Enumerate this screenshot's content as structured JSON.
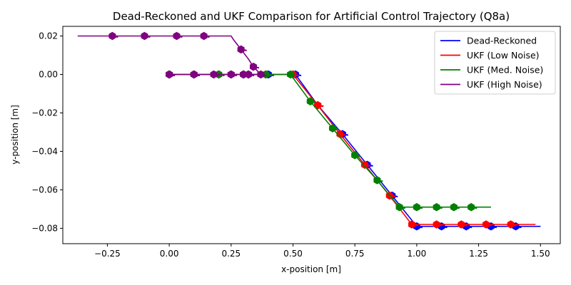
{
  "chart_data": {
    "type": "line",
    "title": "Dead-Reckoned and UKF Comparison for Artificial Control Trajectory (Q8a)",
    "xlabel": "x-position [m]",
    "ylabel": "y-position [m]",
    "xlim": [
      -0.43,
      1.58
    ],
    "ylim": [
      -0.088,
      0.025
    ],
    "xticks": [
      -0.25,
      0.0,
      0.25,
      0.5,
      0.75,
      1.0,
      1.25,
      1.5
    ],
    "xtick_labels": [
      "−0.25",
      "0.00",
      "0.25",
      "0.50",
      "0.75",
      "1.00",
      "1.25",
      "1.50"
    ],
    "yticks": [
      0.02,
      0.0,
      -0.02,
      -0.04,
      -0.06,
      -0.08
    ],
    "ytick_labels": [
      "0.02",
      "0.00",
      "−0.02",
      "−0.04",
      "−0.06",
      "−0.08"
    ],
    "grid": false,
    "legend_position": "top-right",
    "series": [
      {
        "name": "Dead-Reckoned",
        "color": "#0000ff",
        "x": [
          0.0,
          0.1,
          0.2,
          0.3,
          0.4,
          0.51,
          0.6,
          0.7,
          0.8,
          0.9,
          1.0,
          1.1,
          1.2,
          1.3,
          1.4,
          1.5
        ],
        "y": [
          0.0,
          0.0,
          0.0,
          0.0,
          0.0,
          0.0,
          -0.016,
          -0.031,
          -0.047,
          -0.063,
          -0.079,
          -0.079,
          -0.079,
          -0.079,
          -0.079,
          -0.079
        ],
        "markers": [
          0.0,
          0.1,
          0.2,
          0.3,
          0.4,
          0.51,
          0.6,
          0.7,
          0.8,
          0.9,
          1.0,
          1.1,
          1.2,
          1.3,
          1.4
        ]
      },
      {
        "name": "UKF (Low Noise)",
        "color": "#ff0000",
        "x": [
          0.0,
          0.1,
          0.2,
          0.3,
          0.39,
          0.5,
          0.6,
          0.69,
          0.79,
          0.89,
          0.98,
          1.08,
          1.18,
          1.28,
          1.38,
          1.48
        ],
        "y": [
          0.0,
          0.0,
          0.0,
          0.0,
          0.0,
          0.0,
          -0.016,
          -0.031,
          -0.047,
          -0.063,
          -0.078,
          -0.078,
          -0.078,
          -0.078,
          -0.078,
          -0.078
        ],
        "markers": [
          0.0,
          0.1,
          0.2,
          0.3,
          0.39,
          0.5,
          0.6,
          0.69,
          0.79,
          0.89,
          0.98,
          1.08,
          1.18,
          1.28,
          1.38
        ]
      },
      {
        "name": "UKF (Med. Noise)",
        "color": "#008000",
        "x": [
          0.0,
          0.1,
          0.2,
          0.3,
          0.39,
          0.49,
          0.57,
          0.66,
          0.75,
          0.84,
          0.93,
          1.0,
          1.08,
          1.15,
          1.22,
          1.3
        ],
        "y": [
          0.0,
          0.0,
          0.0,
          0.0,
          0.0,
          0.0,
          -0.014,
          -0.028,
          -0.042,
          -0.055,
          -0.069,
          -0.069,
          -0.069,
          -0.069,
          -0.069,
          -0.069
        ],
        "markers": [
          0.0,
          0.1,
          0.2,
          0.3,
          0.39,
          0.49,
          0.57,
          0.66,
          0.75,
          0.84,
          0.93,
          1.0,
          1.08,
          1.15,
          1.22
        ]
      },
      {
        "name": "UKF (High Noise)",
        "color": "#800080",
        "x": [
          0.0,
          0.1,
          0.18,
          0.25,
          0.3,
          0.32,
          0.37,
          0.34,
          0.32,
          0.29,
          0.26,
          0.25,
          0.14,
          0.03,
          -0.1,
          -0.23,
          -0.37
        ],
        "y": [
          0.0,
          0.0,
          0.0,
          0.0,
          0.0,
          0.0,
          0.0,
          0.004,
          0.008,
          0.013,
          0.018,
          0.02,
          0.02,
          0.02,
          0.02,
          0.02,
          0.02
        ],
        "markers": [
          0.0,
          0.1,
          0.18,
          0.25,
          0.3,
          0.32,
          0.37,
          0.34,
          0.32,
          0.29,
          0.25,
          0.14,
          0.03,
          -0.1,
          -0.23
        ]
      }
    ]
  }
}
